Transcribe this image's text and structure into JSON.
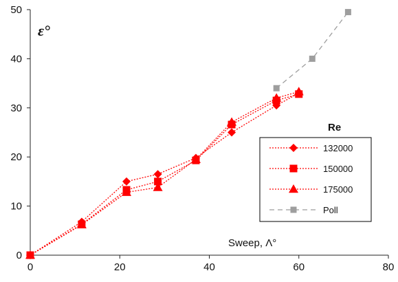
{
  "chart_data": {
    "type": "line",
    "ylabel": "ε°",
    "xlabel": "Sweep, Λ°",
    "xlim": [
      0,
      80
    ],
    "ylim": [
      0,
      50
    ],
    "x_ticks": [
      "0",
      "20",
      "40",
      "60",
      "80"
    ],
    "y_ticks": [
      "0",
      "10",
      "20",
      "30",
      "40",
      "50"
    ],
    "grid": false,
    "legend_title": "Re",
    "legend_position": "right",
    "series": [
      {
        "name": "132000",
        "marker": "diamond",
        "color": "#ff0000",
        "dash": "dotted",
        "x": [
          0,
          11.5,
          21.5,
          28.5,
          37,
          45,
          55,
          60
        ],
        "y": [
          0,
          6.8,
          15.0,
          16.5,
          19.8,
          25.0,
          30.5,
          33.0
        ]
      },
      {
        "name": "150000",
        "marker": "square",
        "color": "#ff0000",
        "dash": "dotted",
        "x": [
          0,
          11.5,
          21.5,
          28.5,
          37,
          45,
          55,
          60
        ],
        "y": [
          0,
          6.3,
          13.3,
          15.0,
          19.3,
          26.6,
          31.5,
          32.8
        ]
      },
      {
        "name": "175000",
        "marker": "triangle",
        "color": "#ff0000",
        "dash": "dotted",
        "x": [
          0,
          11.5,
          21.5,
          28.5,
          37,
          45,
          55,
          60
        ],
        "y": [
          0,
          6.2,
          12.8,
          13.8,
          19.5,
          27.1,
          32.0,
          33.3
        ]
      },
      {
        "name": "Poll",
        "marker": "square",
        "color": "#9e9e9e",
        "dash": "dashed",
        "x": [
          55,
          63,
          71
        ],
        "y": [
          34.0,
          40.0,
          49.5
        ]
      }
    ]
  }
}
